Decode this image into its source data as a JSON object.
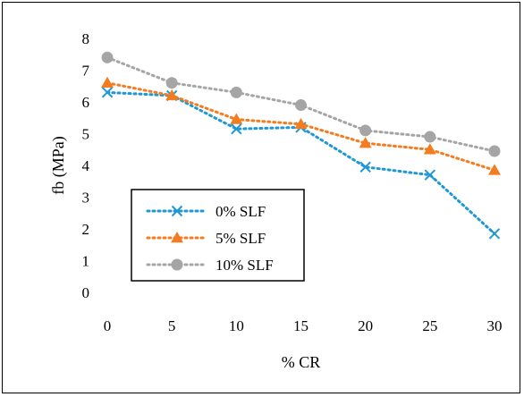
{
  "chart_data": {
    "type": "line",
    "title": "",
    "xlabel": "% CR",
    "ylabel": "fb (MPa)",
    "x": [
      0,
      5,
      10,
      15,
      20,
      25,
      30
    ],
    "xlim": [
      0,
      30
    ],
    "ylim": [
      0,
      8
    ],
    "x_ticks": [
      "0",
      "5",
      "10",
      "15",
      "20",
      "25",
      "30"
    ],
    "y_ticks": [
      "0",
      "1",
      "2",
      "3",
      "4",
      "5",
      "6",
      "7",
      "8"
    ],
    "grid": false,
    "legend_position": "left-bottom (inside)",
    "series": [
      {
        "name": "0% SLF",
        "marker": "x",
        "color": "#1f97d4",
        "values": [
          6.3,
          6.2,
          5.15,
          5.2,
          3.95,
          3.7,
          1.85
        ]
      },
      {
        "name": "5% SLF",
        "marker": "triangle",
        "color": "#f47c20",
        "values": [
          6.6,
          6.2,
          5.45,
          5.3,
          4.7,
          4.5,
          3.85
        ]
      },
      {
        "name": "10% SLF",
        "marker": "circle",
        "color": "#a5a5a5",
        "values": [
          7.4,
          6.6,
          6.3,
          5.9,
          5.1,
          4.9,
          4.45
        ]
      }
    ]
  }
}
